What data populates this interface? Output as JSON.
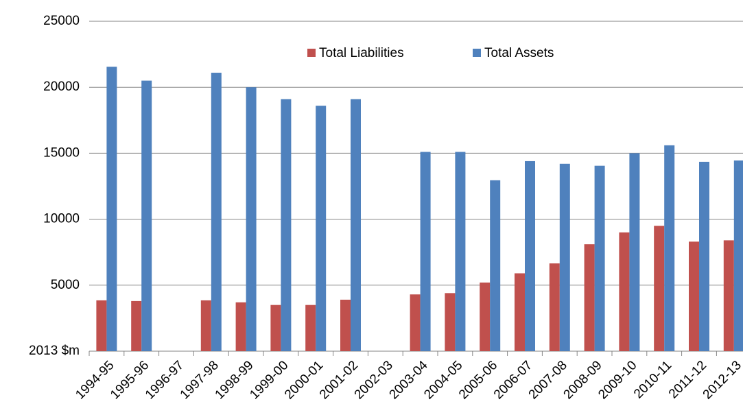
{
  "chart_data": {
    "type": "bar",
    "categories": [
      "1994-95",
      "1995-96",
      "1996-97",
      "1997-98",
      "1998-99",
      "1999-00",
      "2000-01",
      "2001-02",
      "2002-03",
      "2003-04",
      "2004-05",
      "2005-06",
      "2006-07",
      "2007-08",
      "2008-09",
      "2009-10",
      "2010-11",
      "2011-12",
      "2012-13"
    ],
    "series": [
      {
        "name": "Total Liabilities",
        "color": "#c0504d",
        "values": [
          3850,
          3800,
          null,
          3850,
          3700,
          3500,
          3500,
          3900,
          null,
          4300,
          4400,
          5200,
          5900,
          6650,
          8100,
          9000,
          9500,
          8300,
          8400
        ]
      },
      {
        "name": "Total Assets",
        "color": "#4f81bd",
        "values": [
          21550,
          20500,
          null,
          21100,
          20000,
          19100,
          18600,
          19100,
          null,
          15100,
          15100,
          12950,
          14400,
          14200,
          14050,
          15000,
          15600,
          14350,
          14450
        ]
      }
    ],
    "ylim": [
      0,
      25000
    ],
    "yticks": [
      {
        "value": 0,
        "label": "2013 $m"
      },
      5000,
      10000,
      15000,
      20000,
      25000
    ],
    "grid": true,
    "legend": "top"
  }
}
